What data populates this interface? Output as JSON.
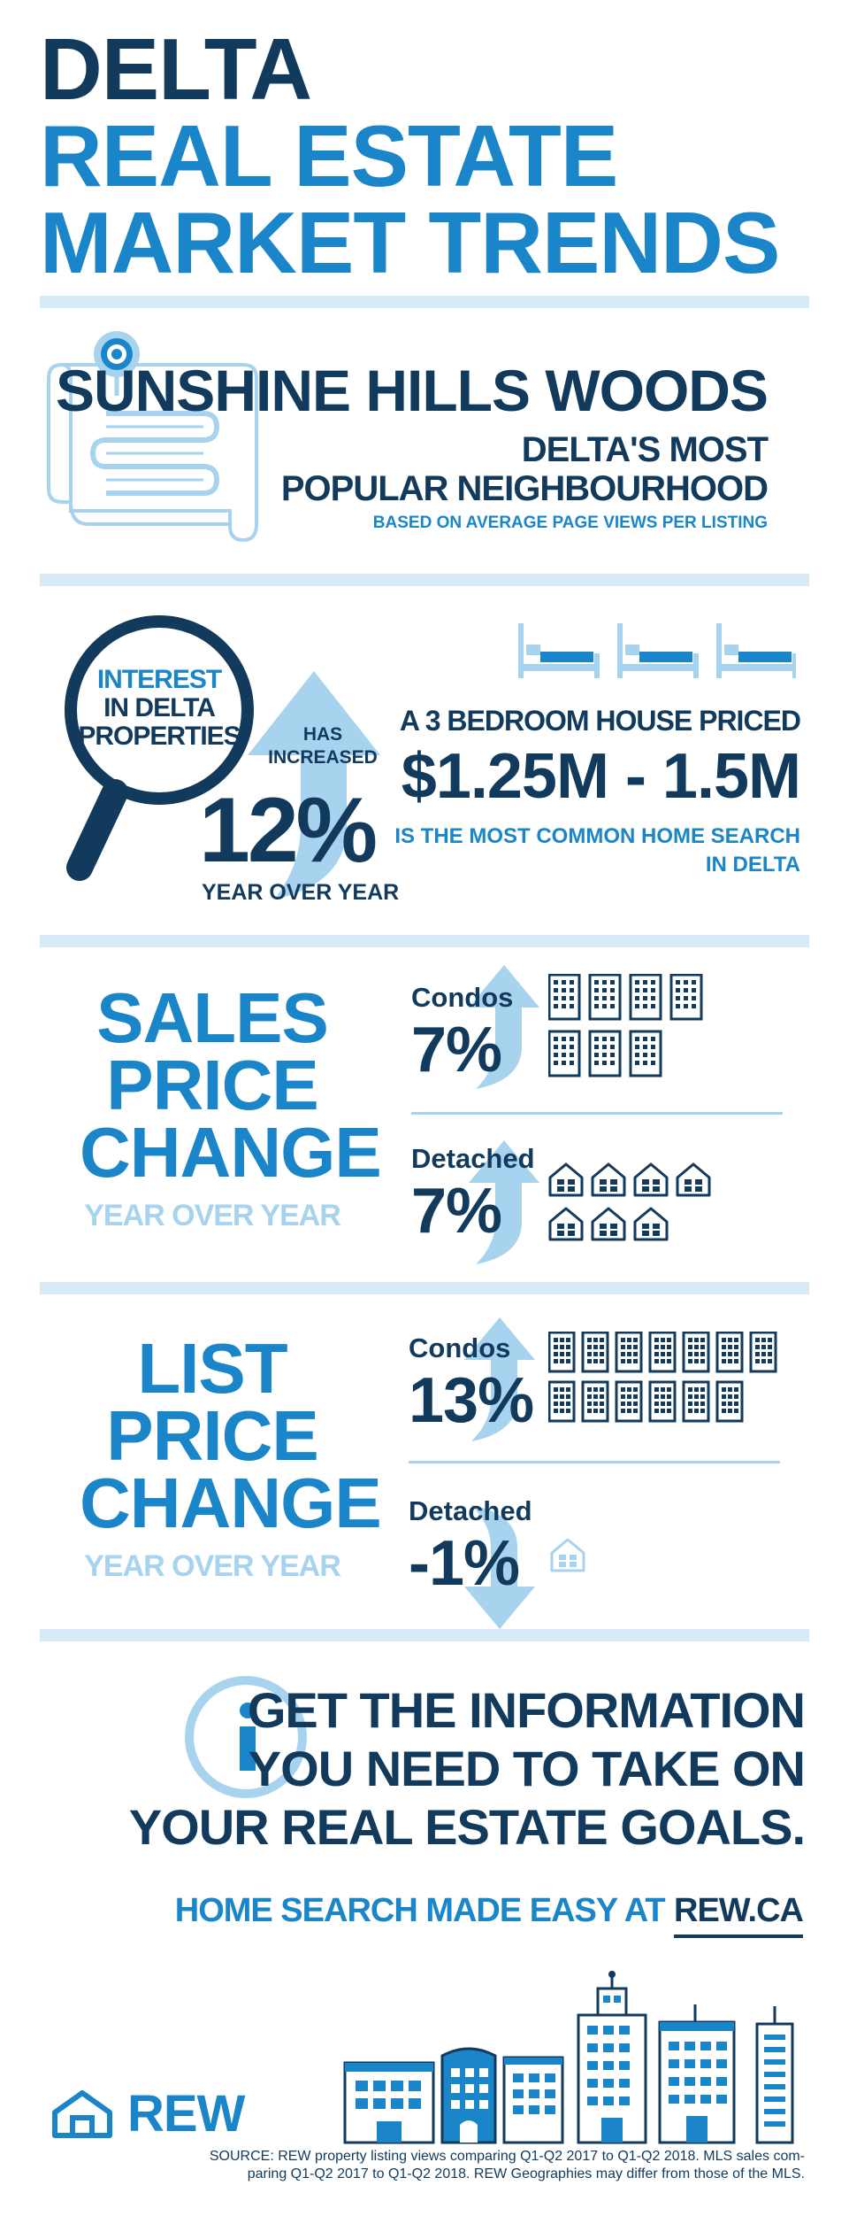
{
  "header": {
    "line1": "DELTA",
    "line2": "REAL ESTATE",
    "line3": "MARKET TRENDS"
  },
  "neighbourhood": {
    "name": "SUNSHINE HILLS WOODS",
    "subtitle_line1": "DELTA'S MOST",
    "subtitle_line2": "POPULAR NEIGHBOURHOOD",
    "note": "BASED ON AVERAGE PAGE VIEWS PER LISTING",
    "icon": "map-pin-icon"
  },
  "interest": {
    "label_line1": "INTEREST",
    "label_line2": "IN DELTA",
    "label_line3": "PROPERTIES",
    "arrow_label_line1": "HAS",
    "arrow_label_line2": "INCREASED",
    "value": "12%",
    "caption": "YEAR OVER YEAR",
    "icon": "magnifier-icon"
  },
  "common_search": {
    "intro": "A 3 BEDROOM HOUSE PRICED",
    "price": "$1.25M - 1.5M",
    "outro_line1": "IS THE MOST COMMON HOME SEARCH",
    "outro_line2": "IN DELTA",
    "bed_count": 3,
    "icon": "bed-icon"
  },
  "sales_price": {
    "title_line1": "SALES",
    "title_line2": "PRICE",
    "title_line3": "CHANGE",
    "subtitle": "YEAR OVER YEAR",
    "condos": {
      "label": "Condos",
      "value": "7%",
      "icon_count": 7
    },
    "detached": {
      "label": "Detached",
      "value": "7%",
      "icon_count": 7
    }
  },
  "list_price": {
    "title_line1": "LIST",
    "title_line2": "PRICE",
    "title_line3": "CHANGE",
    "subtitle": "YEAR OVER YEAR",
    "condos": {
      "label": "Condos",
      "value": "13%",
      "icon_count": 13
    },
    "detached": {
      "label": "Detached",
      "value": "-1%",
      "icon_count": 1
    }
  },
  "cta": {
    "line1": "GET THE INFORMATION",
    "line2": "YOU NEED TO TAKE ON",
    "line3": "YOUR REAL ESTATE GOALS.",
    "link_prefix": "HOME SEARCH MADE EASY AT",
    "link_text": "REW.CA",
    "icon": "info-icon"
  },
  "footer": {
    "logo_text": "REW",
    "source_line1": "SOURCE: REW property listing views comparing Q1-Q2 2017 to Q1-Q2 2018. MLS sales com-",
    "source_line2": "paring Q1-Q2 2017 to Q1-Q2 2018. REW Geographies may differ from those of the MLS."
  },
  "colors": {
    "navy": "#123a5c",
    "blue": "#1a86c9",
    "light_blue": "#a7d3ee",
    "divider": "#d7ebf7"
  }
}
